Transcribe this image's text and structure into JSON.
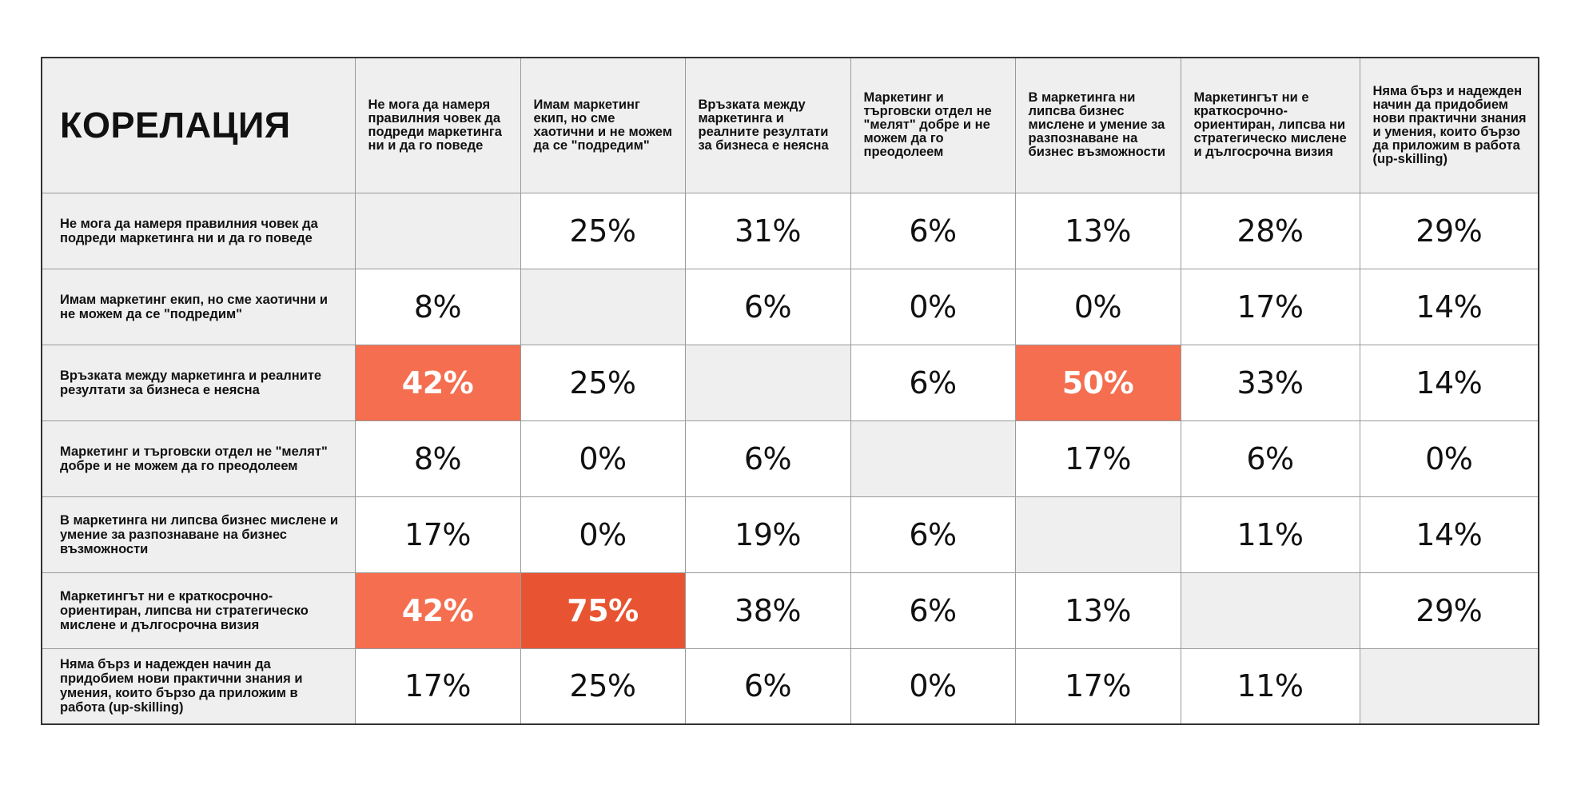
{
  "chart_data": {
    "type": "table",
    "title": "КОРЕЛАЦИЯ",
    "columns": [
      "Не мога да намеря правилния човек да подреди маркетинга ни и да го поведе",
      "Имам маркетинг екип, но сме хаотични и не можем да се \"подредим\"",
      "Връзката между маркетинга и реалните резултати за бизнеса е неясна",
      "Маркетинг и търговски отдел не \"мелят\" добре и не можем да го преодолеем",
      "В маркетинга ни липсва бизнес мислене и умение за разпознаване на бизнес възможности",
      "Маркетингът ни е краткосрочно-ориентиран, липсва ни стратегическо мислене и дългосрочна визия",
      "Няма бърз и надежден начин да придобием нови практични знания и умения, които бързо да приложим в работа (up-skilling)"
    ],
    "rows": [
      {
        "label": "Не мога да намеря правилния човек да подреди маркетинга ни и да го поведе",
        "values": [
          "",
          "25%",
          "31%",
          "6%",
          "13%",
          "28%",
          "29%"
        ]
      },
      {
        "label": "Имам маркетинг екип, но сме хаотични и не можем да се \"подредим\"",
        "values": [
          "8%",
          "",
          "6%",
          "0%",
          "0%",
          "17%",
          "14%"
        ]
      },
      {
        "label": "Връзката между маркетинга и реалните резултати за бизнеса е неясна",
        "values": [
          "42%",
          "25%",
          "",
          "6%",
          "50%",
          "33%",
          "14%"
        ]
      },
      {
        "label": "Маркетинг и търговски отдел не \"мелят\" добре и не можем да го преодолеем",
        "values": [
          "8%",
          "0%",
          "6%",
          "",
          "17%",
          "6%",
          "0%"
        ]
      },
      {
        "label": "В маркетинга ни липсва бизнес мислене и умение за разпознаване на бизнес възможности",
        "values": [
          "17%",
          "0%",
          "19%",
          "6%",
          "",
          "11%",
          "14%"
        ]
      },
      {
        "label": "Маркетингът ни е краткосрочно-ориентиран, липсва ни стратегическо мислене и дългосрочна визия",
        "values": [
          "42%",
          "75%",
          "38%",
          "6%",
          "13%",
          "",
          "29%"
        ]
      },
      {
        "label": "Няма бърз и надежден начин да придобием нови практични знания и умения, които бързо да приложим в работа (up-skilling)",
        "values": [
          "17%",
          "25%",
          "6%",
          "0%",
          "17%",
          "11%",
          ""
        ]
      }
    ],
    "highlight_threshold": 40,
    "colors": {
      "highlight": "#f46e4f",
      "highlight_strong": "#e85431",
      "header_bg": "#efefef",
      "cell_bg": "#ffffff",
      "grid": "#9a9a9a"
    }
  }
}
